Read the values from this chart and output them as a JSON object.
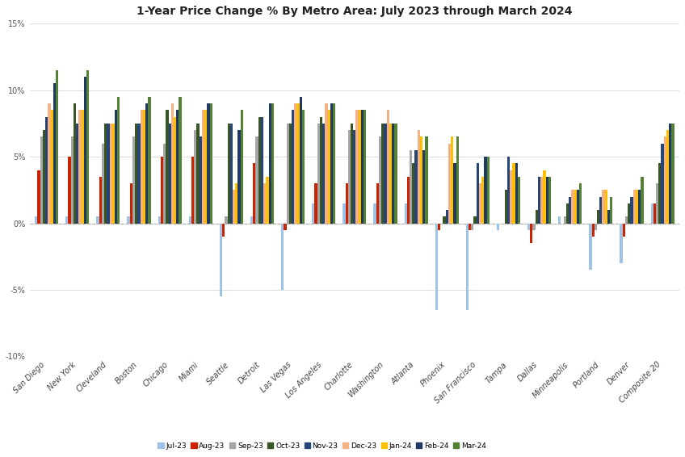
{
  "title": "1-Year Price Change % By Metro Area: July 2023 through March 2024",
  "categories": [
    "San Diego",
    "New York",
    "Cleveland",
    "Boston",
    "Chicago",
    "Miami",
    "Seattle",
    "Detroit",
    "Las Vegas",
    "Los Angeles",
    "Charlotte",
    "Washington",
    "Atlanta",
    "Phoenix",
    "San Francisco",
    "Tampa",
    "Dallas",
    "Minneapolis",
    "Portland",
    "Denver",
    "Composite 20"
  ],
  "series_labels": [
    "Jul-23",
    "Aug-23",
    "Sep-23",
    "Oct-23",
    "Nov-23",
    "Dec-23",
    "Jan-24",
    "Feb-24",
    "Mar-24"
  ],
  "bar_colors": [
    "#9DC3E6",
    "#CC2200",
    "#A5A5A5",
    "#375623",
    "#264478",
    "#F4B183",
    "#FFC000",
    "#1F3864",
    "#548235"
  ],
  "data": {
    "Jul-23": [
      0.5,
      0.5,
      0.5,
      0.5,
      0.5,
      0.5,
      -5.5,
      0.5,
      -5.0,
      1.5,
      1.5,
      1.5,
      1.5,
      -6.5,
      -6.5,
      -0.5,
      -0.5,
      0.5,
      -3.5,
      -3.0,
      1.5
    ],
    "Aug-23": [
      4.0,
      5.0,
      3.5,
      3.0,
      5.0,
      5.0,
      -1.0,
      4.5,
      -0.5,
      3.0,
      3.0,
      3.0,
      3.5,
      -0.5,
      -0.5,
      0.0,
      -1.5,
      0.0,
      -1.0,
      -1.0,
      1.5
    ],
    "Sep-23": [
      6.5,
      6.5,
      6.0,
      6.5,
      6.0,
      7.0,
      0.5,
      6.5,
      7.5,
      7.5,
      7.0,
      6.5,
      5.5,
      0.0,
      -0.5,
      0.0,
      -0.5,
      0.5,
      -0.5,
      0.5,
      3.0
    ],
    "Oct-23": [
      7.0,
      9.0,
      7.5,
      7.5,
      8.5,
      7.5,
      7.5,
      8.0,
      7.5,
      8.0,
      7.5,
      7.5,
      4.5,
      0.5,
      0.5,
      2.5,
      1.0,
      1.5,
      1.0,
      1.5,
      4.5
    ],
    "Nov-23": [
      8.0,
      7.5,
      7.5,
      7.5,
      7.5,
      6.5,
      7.5,
      8.0,
      8.5,
      7.5,
      7.0,
      7.5,
      5.5,
      1.0,
      4.5,
      5.0,
      3.5,
      2.0,
      2.0,
      2.0,
      6.0
    ],
    "Dec-23": [
      9.0,
      8.5,
      7.5,
      8.5,
      9.0,
      8.5,
      2.5,
      3.0,
      9.0,
      9.0,
      8.5,
      8.5,
      7.0,
      6.0,
      3.0,
      4.0,
      3.5,
      2.5,
      2.5,
      2.5,
      6.5
    ],
    "Jan-24": [
      8.5,
      8.5,
      7.5,
      8.5,
      8.0,
      8.5,
      3.0,
      3.5,
      9.0,
      8.5,
      8.5,
      7.5,
      6.5,
      6.5,
      3.5,
      4.5,
      4.0,
      2.5,
      2.5,
      2.5,
      7.0
    ],
    "Feb-24": [
      10.5,
      11.0,
      8.5,
      9.0,
      8.5,
      9.0,
      7.0,
      9.0,
      9.5,
      9.0,
      8.5,
      7.5,
      5.5,
      4.5,
      5.0,
      4.5,
      3.5,
      2.5,
      1.0,
      2.5,
      7.5
    ],
    "Mar-24": [
      11.5,
      11.5,
      9.5,
      9.5,
      9.5,
      9.0,
      8.5,
      9.0,
      8.5,
      9.0,
      8.5,
      7.5,
      6.5,
      6.5,
      5.0,
      3.5,
      3.5,
      3.0,
      2.0,
      3.5,
      7.5
    ]
  },
  "ylim": [
    -10,
    15
  ],
  "yticks": [
    -10,
    -5,
    0,
    5,
    10,
    15
  ],
  "ytick_labels": [
    "-10%",
    "-5%",
    "0%",
    "5%",
    "10%",
    "15%"
  ]
}
